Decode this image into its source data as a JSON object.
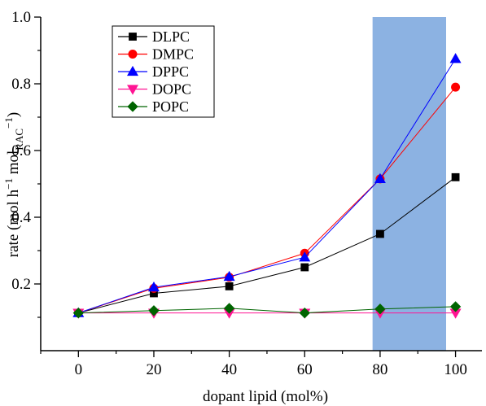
{
  "chart_data": {
    "type": "line",
    "xlabel": "dopant lipid (mol%)",
    "ylabel": {
      "part1": "rate (mol h",
      "sup1": "−1",
      "part2": " mol",
      "sub": "RAC",
      "sup2": "−1",
      "part3": ")"
    },
    "xlim": [
      -10,
      107
    ],
    "ylim": [
      0.0,
      1.0
    ],
    "x_ticks": [
      "0",
      "20",
      "40",
      "60",
      "80",
      "100"
    ],
    "x_tick_values": [
      0,
      20,
      40,
      60,
      80,
      100
    ],
    "y_ticks": [
      "0.2",
      "0.4",
      "0.6",
      "0.8",
      "1.0"
    ],
    "y_tick_values": [
      0.2,
      0.4,
      0.6,
      0.8,
      1.0
    ],
    "highlight_band": {
      "x_range": [
        78,
        97.5
      ],
      "color": "#8cb2e2"
    },
    "legend_position": "top-left",
    "grid": false,
    "x": [
      0,
      20,
      40,
      60,
      80,
      100
    ],
    "series": [
      {
        "name": "DLPC",
        "color": "#000000",
        "marker": "square",
        "values": [
          0.113,
          0.172,
          0.193,
          0.25,
          0.35,
          0.52
        ]
      },
      {
        "name": "DMPC",
        "color": "#ff0000",
        "marker": "circle",
        "values": [
          0.113,
          0.187,
          0.22,
          0.292,
          0.515,
          0.79
        ]
      },
      {
        "name": "DPPC",
        "color": "#0000ff",
        "marker": "triangle-up",
        "values": [
          0.113,
          0.19,
          0.222,
          0.28,
          0.515,
          0.875
        ]
      },
      {
        "name": "DOPC",
        "color": "#ff1493",
        "marker": "triangle-down",
        "values": [
          0.113,
          0.113,
          0.113,
          0.113,
          0.113,
          0.113
        ]
      },
      {
        "name": "POPC",
        "color": "#006400",
        "marker": "diamond",
        "values": [
          0.113,
          0.12,
          0.127,
          0.113,
          0.125,
          0.132
        ]
      }
    ]
  }
}
